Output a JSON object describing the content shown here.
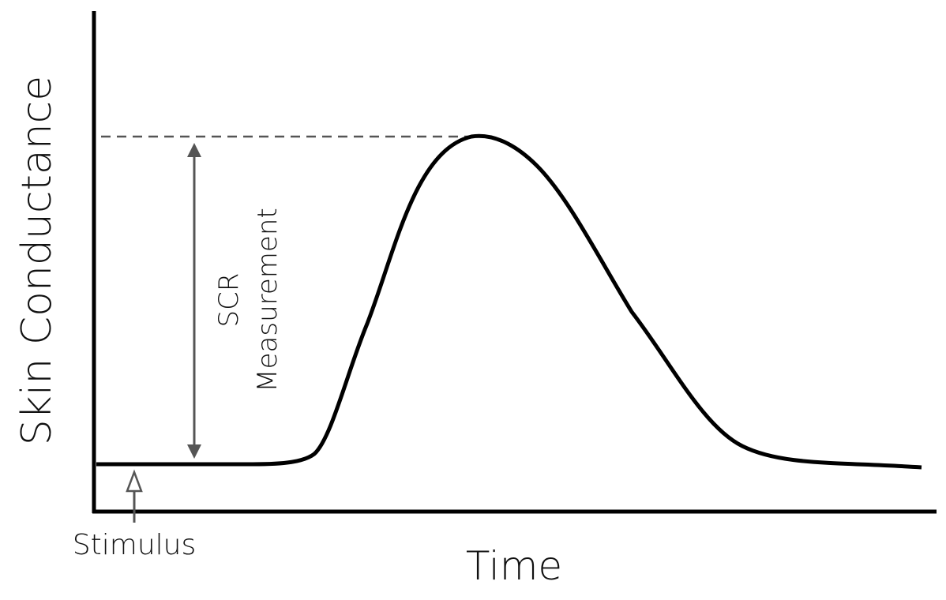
{
  "y_axis": {
    "label": "Skin Conductance"
  },
  "x_axis": {
    "label": "Time"
  },
  "stimulus": {
    "label": "Stimulus"
  },
  "measurement": {
    "lines": [
      "SCR",
      "Measurement"
    ]
  }
}
